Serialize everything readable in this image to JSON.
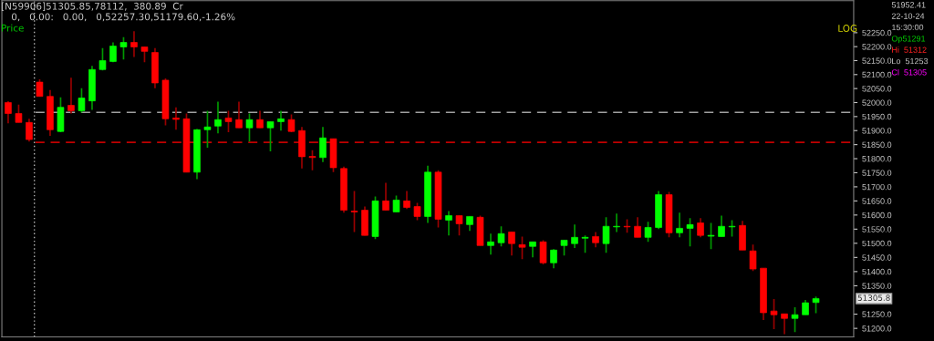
{
  "chart_data": {
    "type": "candlestick",
    "categories": [
      null,
      null,
      null,
      null,
      null,
      null,
      null,
      null,
      null,
      null,
      null,
      null,
      null,
      null,
      null,
      null,
      null,
      null,
      null,
      null,
      null,
      null,
      null,
      null,
      null,
      null,
      null,
      null,
      null,
      null,
      null,
      null,
      null,
      null,
      null,
      null,
      null,
      null,
      null,
      null,
      null,
      null,
      null,
      null,
      null,
      null,
      null,
      null,
      null,
      null,
      null,
      null,
      null,
      null,
      null,
      null,
      null,
      null,
      null,
      null,
      null,
      null,
      null,
      null,
      null,
      null,
      null,
      null,
      null,
      null,
      null,
      null,
      null,
      null,
      null,
      null,
      null,
      null
    ],
    "ohlc": [
      [
        52000,
        52005,
        51926,
        51961
      ],
      [
        51961,
        51993,
        51929,
        51929
      ],
      [
        51929,
        51942,
        51861,
        51868
      ],
      [
        52073,
        52083,
        52022,
        52022
      ],
      [
        52022,
        52045,
        51881,
        51903
      ],
      [
        51897,
        52019,
        51894,
        51983
      ],
      [
        51990,
        52089,
        51961,
        51971
      ],
      [
        51971,
        52051,
        51964,
        52016
      ],
      [
        52006,
        52131,
        51974,
        52118
      ],
      [
        52118,
        52195,
        52115,
        52150
      ],
      [
        52147,
        52215,
        52144,
        52202
      ],
      [
        52199,
        52234,
        52154,
        52215
      ],
      [
        52215,
        52255,
        52163,
        52199
      ],
      [
        52199,
        52199,
        52144,
        52183
      ],
      [
        52179,
        52195,
        52051,
        52070
      ],
      [
        52080,
        52086,
        51919,
        51942
      ],
      [
        51945,
        51983,
        51903,
        51940
      ],
      [
        51942,
        51961,
        51752,
        51752
      ],
      [
        51752,
        51906,
        51727,
        51903
      ],
      [
        51903,
        51971,
        51839,
        51913
      ],
      [
        51916,
        52003,
        51890,
        51939
      ],
      [
        51945,
        51971,
        51894,
        51932
      ],
      [
        51939,
        52003,
        51910,
        51910
      ],
      [
        51910,
        51961,
        51861,
        51939
      ],
      [
        51939,
        51971,
        51910,
        51910
      ],
      [
        51910,
        51932,
        51826,
        51932
      ],
      [
        51932,
        51971,
        51900,
        51942
      ],
      [
        51939,
        51958,
        51894,
        51897
      ],
      [
        51900,
        51913,
        51765,
        51807
      ],
      [
        51808,
        51830,
        51759,
        51804
      ],
      [
        51804,
        51913,
        51788,
        51874
      ],
      [
        51871,
        51871,
        51752,
        51768
      ],
      [
        51765,
        51772,
        51608,
        51617
      ],
      [
        51614,
        51685,
        51540,
        51611
      ],
      [
        51617,
        51630,
        51528,
        51528
      ],
      [
        51524,
        51666,
        51515,
        51650
      ],
      [
        51650,
        51714,
        51617,
        51617
      ],
      [
        51611,
        51669,
        51611,
        51653
      ],
      [
        51650,
        51685,
        51621,
        51627
      ],
      [
        51630,
        51643,
        51582,
        51595
      ],
      [
        51595,
        51775,
        51572,
        51752
      ],
      [
        51752,
        51759,
        51556,
        51585
      ],
      [
        51582,
        51614,
        51528,
        51598
      ],
      [
        51598,
        51598,
        51528,
        51569
      ],
      [
        51566,
        51595,
        51544,
        51595
      ],
      [
        51592,
        51598,
        51492,
        51492
      ],
      [
        51492,
        51534,
        51460,
        51505
      ],
      [
        51502,
        51560,
        51489,
        51534
      ],
      [
        51540,
        51540,
        51457,
        51499
      ],
      [
        51495,
        51524,
        51444,
        51486
      ],
      [
        51489,
        51505,
        51450,
        51505
      ],
      [
        51505,
        51511,
        51425,
        51431
      ],
      [
        51431,
        51479,
        51412,
        51476
      ],
      [
        51492,
        51511,
        51457,
        51511
      ],
      [
        51499,
        51566,
        51483,
        51521
      ],
      [
        51518,
        51528,
        51466,
        51521
      ],
      [
        51524,
        51540,
        51486,
        51502
      ],
      [
        51499,
        51592,
        51466,
        51560
      ],
      [
        51558,
        51605,
        51540,
        51560
      ],
      [
        51560,
        51585,
        51537,
        51558
      ],
      [
        51560,
        51592,
        51521,
        51521
      ],
      [
        51521,
        51576,
        51505,
        51556
      ],
      [
        51556,
        51685,
        51550,
        51672
      ],
      [
        51672,
        51682,
        51521,
        51537
      ],
      [
        51537,
        51608,
        51521,
        51553
      ],
      [
        51553,
        51589,
        51489,
        51566
      ],
      [
        51572,
        51589,
        51521,
        51528
      ],
      [
        51525,
        51572,
        51479,
        51528
      ],
      [
        51524,
        51598,
        51524,
        51560
      ],
      [
        51558,
        51582,
        51524,
        51560
      ],
      [
        51563,
        51579,
        51476,
        51476
      ],
      [
        51473,
        51495,
        51402,
        51409
      ],
      [
        51412,
        51412,
        51229,
        51255
      ],
      [
        51261,
        51303,
        51197,
        51248
      ],
      [
        51251,
        51251,
        51180,
        51235
      ],
      [
        51235,
        51274,
        51187,
        51248
      ],
      [
        51248,
        51300,
        51248,
        51290
      ],
      [
        51291,
        51312,
        51253,
        51305
      ]
    ],
    "colors": [
      "#ff0000",
      "#ff0000",
      "#ff0000",
      "#ff0000",
      "#ff0000",
      "#00ff00",
      "#ff0000",
      "#00ff00",
      "#00ff00",
      "#00ff00",
      "#00ff00",
      "#00ff00",
      "#ff0000",
      "#ff0000",
      "#ff0000",
      "#ff0000",
      "#ff0000",
      "#ff0000",
      "#00ff00",
      "#00ff00",
      "#00ff00",
      "#ff0000",
      "#ff0000",
      "#00ff00",
      "#ff0000",
      "#00ff00",
      "#00ff00",
      "#ff0000",
      "#ff0000",
      "#ff0000",
      "#00ff00",
      "#ff0000",
      "#ff0000",
      "#ff0000",
      "#ff0000",
      "#00ff00",
      "#ff0000",
      "#00ff00",
      "#ff0000",
      "#ff0000",
      "#00ff00",
      "#ff0000",
      "#00ff00",
      "#ff0000",
      "#00ff00",
      "#ff0000",
      "#00ff00",
      "#00ff00",
      "#ff0000",
      "#ff0000",
      "#00ff00",
      "#ff0000",
      "#00ff00",
      "#00ff00",
      "#00ff00",
      "#00ff00",
      "#ff0000",
      "#00ff00",
      "#00ff00",
      "#ff0000",
      "#ff0000",
      "#00ff00",
      "#00ff00",
      "#ff0000",
      "#00ff00",
      "#00ff00",
      "#ff0000",
      "#00ff00",
      "#00ff00",
      "#00ff00",
      "#ff0000",
      "#ff0000",
      "#ff0000",
      "#ff0000",
      "#ff0000",
      "#00ff00",
      "#00ff00",
      "#00ff00"
    ],
    "log": true,
    "ylim": [
      51170,
      52365
    ],
    "yticks": [
      {
        "value": 51200,
        "label": "51200.0"
      },
      {
        "value": 51250,
        "label": "51250.0"
      },
      {
        "value": 51350,
        "label": "51350.0"
      },
      {
        "value": 51400,
        "label": "51400.0"
      },
      {
        "value": 51450,
        "label": "51450.0"
      },
      {
        "value": 51500,
        "label": "51500.0"
      },
      {
        "value": 51550,
        "label": "51550.0"
      },
      {
        "value": 51600,
        "label": "51600.0"
      },
      {
        "value": 51650,
        "label": "51650.0"
      },
      {
        "value": 51700,
        "label": "51700.0"
      },
      {
        "value": 51750,
        "label": "51750.0"
      },
      {
        "value": 51800,
        "label": "51800.0"
      },
      {
        "value": 51850,
        "label": "51850.0"
      },
      {
        "value": 51900,
        "label": "51900.0"
      },
      {
        "value": 51950,
        "label": "51950.0"
      },
      {
        "value": 52000,
        "label": "52000.0"
      },
      {
        "value": 52050,
        "label": "52050.0"
      },
      {
        "value": 52100,
        "label": "52100.0"
      },
      {
        "value": 52150,
        "label": "52150.0"
      },
      {
        "value": 52200,
        "label": "52200.0"
      },
      {
        "value": 52250,
        "label": "52250.0"
      }
    ],
    "ref_lines": [
      {
        "axis": "y",
        "value": 51965,
        "color": "#a0a0a0",
        "line_style": "dashed"
      },
      {
        "axis": "y",
        "value": 51858,
        "color": "#c00000",
        "line_style": "dashed"
      }
    ],
    "tick_labels": "y",
    "grid": false,
    "legend": false,
    "annotations": [
      "[N59906]51305.85,78112,  380.89  Cr",
      "0,   0.00:   0.00,   0,52257.30,51179.60,-1.26%",
      "Price",
      "LOG",
      "51952.41",
      "22-10-24",
      "15:30:00",
      "Op51291",
      "Hi  51312",
      "Lo  51253",
      "Cl  51305",
      "51305.8"
    ]
  }
}
